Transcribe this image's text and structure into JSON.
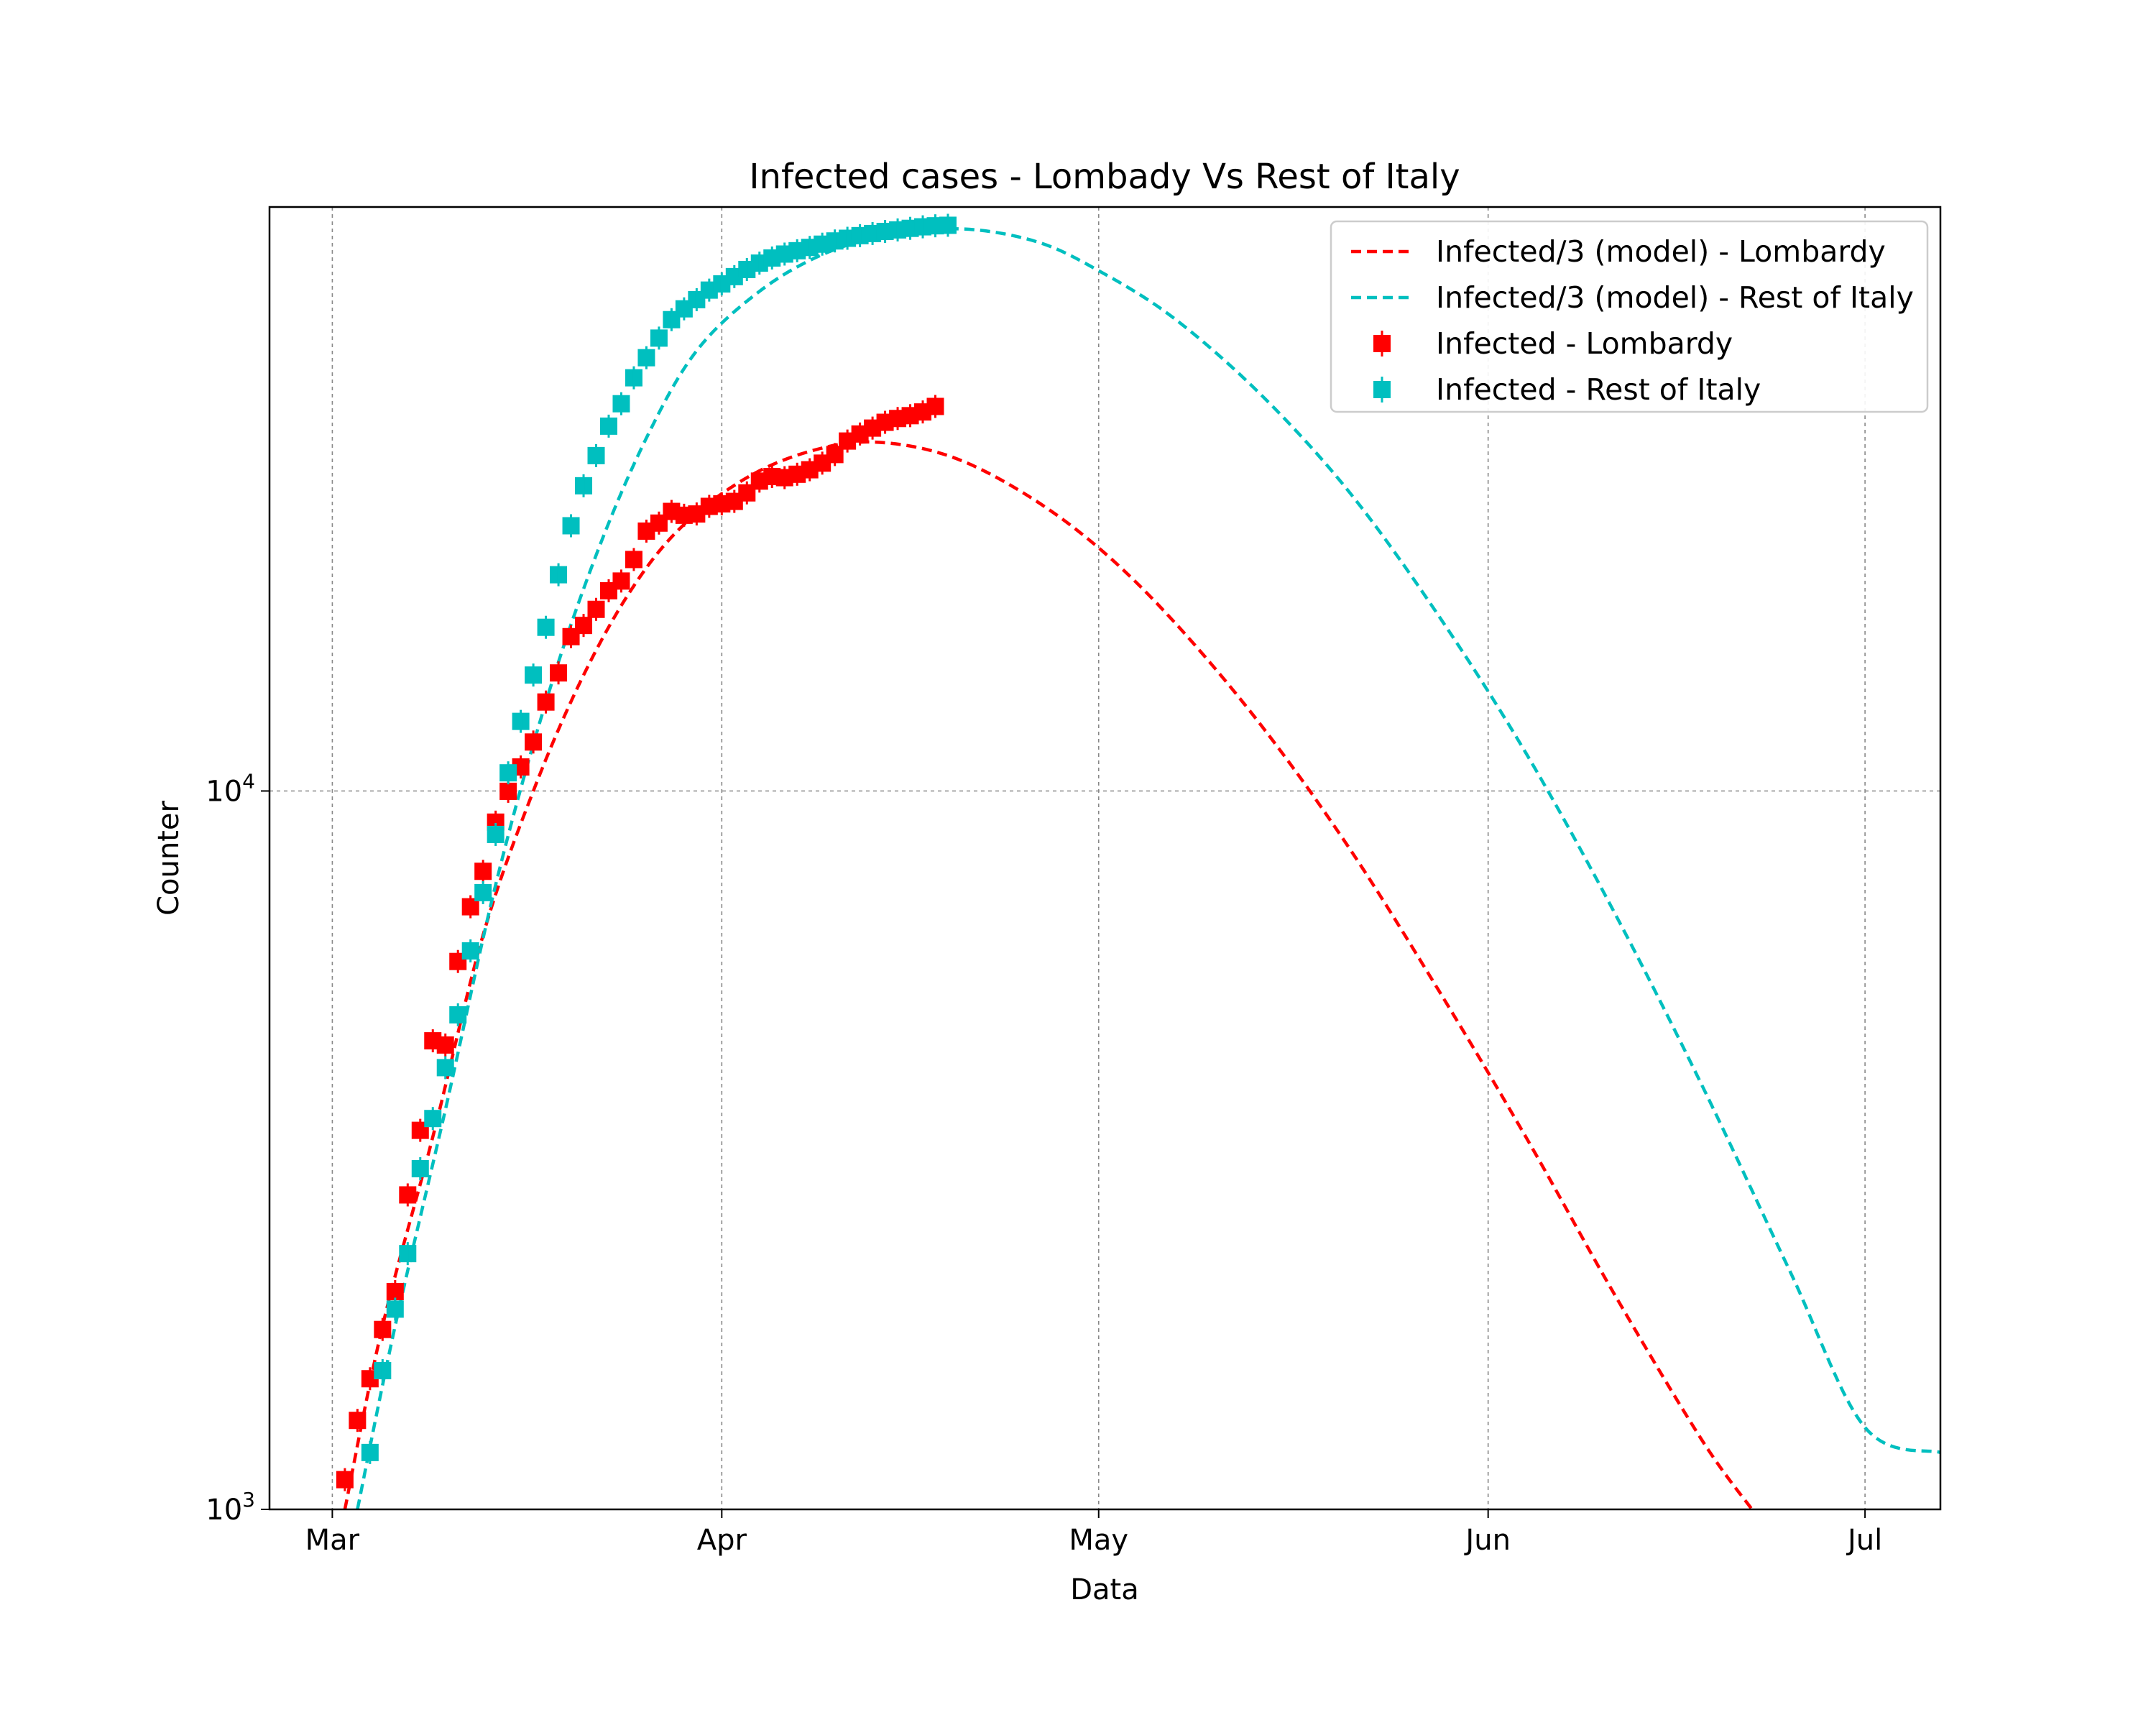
{
  "chart_data": {
    "type": "line",
    "title": "Infected cases - Lombady Vs Rest of Italy",
    "xlabel": "Data",
    "ylabel": "Counter",
    "yscale": "log",
    "ylim": [
      1000,
      65000
    ],
    "xlim": [
      "2020-02-25",
      "2020-07-07"
    ],
    "x_ticks": [
      {
        "date": "2020-03-01",
        "label": "Mar"
      },
      {
        "date": "2020-04-01",
        "label": "Apr"
      },
      {
        "date": "2020-05-01",
        "label": "May"
      },
      {
        "date": "2020-06-01",
        "label": "Jun"
      },
      {
        "date": "2020-07-01",
        "label": "Jul"
      }
    ],
    "y_ticks": [
      {
        "value": 1000,
        "base": "10",
        "exp": "3"
      },
      {
        "value": 10000,
        "base": "10",
        "exp": "4"
      }
    ],
    "grid": true,
    "legend": {
      "position": "top-right",
      "entries": [
        {
          "label": "Infected/3 (model) - Lombardy",
          "style": "dashed",
          "color": "#ff0000"
        },
        {
          "label": "Infected/3 (model) - Rest of Italy",
          "style": "dashed",
          "color": "#00bfbf"
        },
        {
          "label": "Infected - Lombardy",
          "style": "marker",
          "color": "#ff0000"
        },
        {
          "label": "Infected - Rest of Italy",
          "style": "marker",
          "color": "#00bfbf"
        }
      ]
    },
    "series": [
      {
        "name": "Infected/3 (model) - Lombardy",
        "style": "dashed",
        "color": "#ff0000",
        "points": [
          [
            "2020-03-02",
            1000
          ],
          [
            "2020-03-05",
            1800
          ],
          [
            "2020-03-09",
            3300
          ],
          [
            "2020-03-13",
            6300
          ],
          [
            "2020-03-17",
            10000
          ],
          [
            "2020-03-21",
            14500
          ],
          [
            "2020-03-25",
            19300
          ],
          [
            "2020-03-29",
            23500
          ],
          [
            "2020-04-03",
            27300
          ],
          [
            "2020-04-08",
            29700
          ],
          [
            "2020-04-13",
            30600
          ],
          [
            "2020-04-19",
            29300
          ],
          [
            "2020-04-25",
            26000
          ],
          [
            "2020-05-01",
            21800
          ],
          [
            "2020-05-07",
            17200
          ],
          [
            "2020-05-14",
            12300
          ],
          [
            "2020-05-21",
            8300
          ],
          [
            "2020-05-28",
            5300
          ],
          [
            "2020-06-04",
            3300
          ],
          [
            "2020-06-11",
            2000
          ],
          [
            "2020-06-18",
            1250
          ],
          [
            "2020-06-22",
            1000
          ]
        ]
      },
      {
        "name": "Infected/3 (model) - Rest of Italy",
        "style": "dashed",
        "color": "#00bfbf",
        "points": [
          [
            "2020-03-03",
            1000
          ],
          [
            "2020-03-06",
            1800
          ],
          [
            "2020-03-10",
            3600
          ],
          [
            "2020-03-14",
            7400
          ],
          [
            "2020-03-18",
            13300
          ],
          [
            "2020-03-22",
            21300
          ],
          [
            "2020-03-26",
            31000
          ],
          [
            "2020-03-30",
            41000
          ],
          [
            "2020-04-04",
            49600
          ],
          [
            "2020-04-09",
            55800
          ],
          [
            "2020-04-14",
            59200
          ],
          [
            "2020-04-20",
            60600
          ],
          [
            "2020-04-26",
            58200
          ],
          [
            "2020-05-01",
            53000
          ],
          [
            "2020-05-07",
            45500
          ],
          [
            "2020-05-14",
            35500
          ],
          [
            "2020-05-21",
            26000
          ],
          [
            "2020-05-28",
            17600
          ],
          [
            "2020-06-04",
            11300
          ],
          [
            "2020-06-11",
            6800
          ],
          [
            "2020-06-18",
            3900
          ],
          [
            "2020-06-25",
            2150
          ],
          [
            "2020-07-01",
            1300
          ],
          [
            "2020-07-07",
            1200
          ]
        ]
      },
      {
        "name": "Infected - Lombardy",
        "style": "marker",
        "color": "#ff0000",
        "points": [
          [
            "2020-03-02",
            1100
          ],
          [
            "2020-03-03",
            1330
          ],
          [
            "2020-03-04",
            1520
          ],
          [
            "2020-03-05",
            1780
          ],
          [
            "2020-03-06",
            2010
          ],
          [
            "2020-03-07",
            2740
          ],
          [
            "2020-03-08",
            3370
          ],
          [
            "2020-03-09",
            4490
          ],
          [
            "2020-03-10",
            4430
          ],
          [
            "2020-03-11",
            5790
          ],
          [
            "2020-03-12",
            6900
          ],
          [
            "2020-03-13",
            7730
          ],
          [
            "2020-03-14",
            9050
          ],
          [
            "2020-03-15",
            9990
          ],
          [
            "2020-03-16",
            10800
          ],
          [
            "2020-03-17",
            11700
          ],
          [
            "2020-03-18",
            13300
          ],
          [
            "2020-03-19",
            14600
          ],
          [
            "2020-03-20",
            16400
          ],
          [
            "2020-03-21",
            17000
          ],
          [
            "2020-03-22",
            17900
          ],
          [
            "2020-03-23",
            19000
          ],
          [
            "2020-03-24",
            19600
          ],
          [
            "2020-03-25",
            21000
          ],
          [
            "2020-03-26",
            23000
          ],
          [
            "2020-03-27",
            23600
          ],
          [
            "2020-03-28",
            24500
          ],
          [
            "2020-03-29",
            24200
          ],
          [
            "2020-03-30",
            24300
          ],
          [
            "2020-03-31",
            24900
          ],
          [
            "2020-04-01",
            25100
          ],
          [
            "2020-04-02",
            25300
          ],
          [
            "2020-04-03",
            26000
          ],
          [
            "2020-04-04",
            27000
          ],
          [
            "2020-04-05",
            27400
          ],
          [
            "2020-04-06",
            27300
          ],
          [
            "2020-04-07",
            27600
          ],
          [
            "2020-04-08",
            28000
          ],
          [
            "2020-04-09",
            28600
          ],
          [
            "2020-04-10",
            29400
          ],
          [
            "2020-04-11",
            30700
          ],
          [
            "2020-04-12",
            31400
          ],
          [
            "2020-04-13",
            32000
          ],
          [
            "2020-04-14",
            32600
          ],
          [
            "2020-04-15",
            33000
          ],
          [
            "2020-04-16",
            33300
          ],
          [
            "2020-04-17",
            33700
          ],
          [
            "2020-04-18",
            34300
          ]
        ]
      },
      {
        "name": "Infected - Rest of Italy",
        "style": "marker",
        "color": "#00bfbf",
        "points": [
          [
            "2020-03-04",
            1200
          ],
          [
            "2020-03-05",
            1560
          ],
          [
            "2020-03-06",
            1900
          ],
          [
            "2020-03-07",
            2270
          ],
          [
            "2020-03-08",
            2980
          ],
          [
            "2020-03-09",
            3500
          ],
          [
            "2020-03-10",
            4120
          ],
          [
            "2020-03-11",
            4880
          ],
          [
            "2020-03-12",
            5990
          ],
          [
            "2020-03-13",
            7220
          ],
          [
            "2020-03-14",
            8700
          ],
          [
            "2020-03-15",
            10600
          ],
          [
            "2020-03-16",
            12500
          ],
          [
            "2020-03-17",
            14500
          ],
          [
            "2020-03-18",
            16900
          ],
          [
            "2020-03-19",
            20000
          ],
          [
            "2020-03-20",
            23400
          ],
          [
            "2020-03-21",
            26600
          ],
          [
            "2020-03-22",
            29300
          ],
          [
            "2020-03-23",
            32200
          ],
          [
            "2020-03-24",
            34600
          ],
          [
            "2020-03-25",
            37600
          ],
          [
            "2020-03-26",
            40100
          ],
          [
            "2020-03-27",
            42700
          ],
          [
            "2020-03-28",
            45300
          ],
          [
            "2020-03-29",
            46900
          ],
          [
            "2020-03-30",
            48300
          ],
          [
            "2020-03-31",
            49800
          ],
          [
            "2020-04-01",
            50800
          ],
          [
            "2020-04-02",
            52000
          ],
          [
            "2020-04-03",
            53200
          ],
          [
            "2020-04-04",
            54300
          ],
          [
            "2020-04-05",
            55200
          ],
          [
            "2020-04-06",
            55900
          ],
          [
            "2020-04-07",
            56500
          ],
          [
            "2020-04-08",
            57100
          ],
          [
            "2020-04-09",
            57700
          ],
          [
            "2020-04-10",
            58300
          ],
          [
            "2020-04-11",
            58800
          ],
          [
            "2020-04-12",
            59300
          ],
          [
            "2020-04-13",
            59700
          ],
          [
            "2020-04-14",
            60100
          ],
          [
            "2020-04-15",
            60400
          ],
          [
            "2020-04-16",
            60700
          ],
          [
            "2020-04-17",
            61000
          ],
          [
            "2020-04-18",
            61200
          ],
          [
            "2020-04-19",
            61300
          ]
        ]
      }
    ]
  }
}
